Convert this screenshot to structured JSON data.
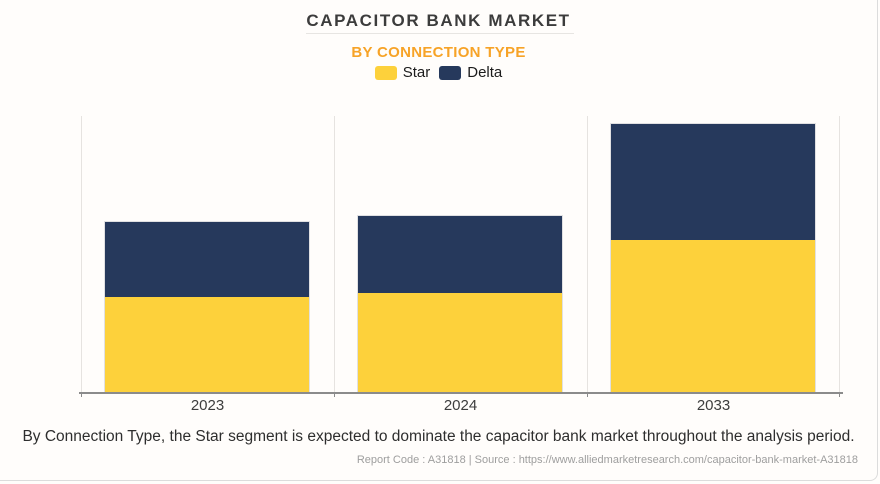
{
  "header": {
    "title": "CAPACITOR BANK MARKET",
    "subtitle": "BY CONNECTION TYPE",
    "subtitle_color": "#f7a327",
    "legend": [
      {
        "label": "Star",
        "color": "#fdd13b"
      },
      {
        "label": "Delta",
        "color": "#26395c"
      }
    ]
  },
  "chart_data": {
    "type": "bar",
    "stacked": true,
    "title": "CAPACITOR BANK MARKET",
    "subtitle": "BY CONNECTION TYPE",
    "categories": [
      "2023",
      "2024",
      "2033"
    ],
    "series": [
      {
        "name": "Star",
        "color": "#fdd13b",
        "values": [
          95,
          99,
          152
        ]
      },
      {
        "name": "Delta",
        "color": "#26395c",
        "values": [
          75,
          77,
          116
        ]
      }
    ],
    "xlabel": "",
    "ylabel": "",
    "ylim": [
      0,
      276
    ],
    "value_units": "relative index (no y-axis shown)",
    "y_axis_visible": false,
    "grid": "vertical category separators only",
    "legend_position": "top"
  },
  "footnote": "By Connection Type, the Star segment is expected to dominate the capacitor bank market throughout the analysis period.",
  "source_line": "Report Code : A31818  |  Source : https://www.alliedmarketresearch.com/capacitor-bank-market-A31818",
  "colors": {
    "background": "#fffdfb",
    "axis": "#8b8b8b",
    "gridline": "#e6e3e0",
    "title_text": "#3c3c3c",
    "footer_text": "#9e9e9e"
  }
}
